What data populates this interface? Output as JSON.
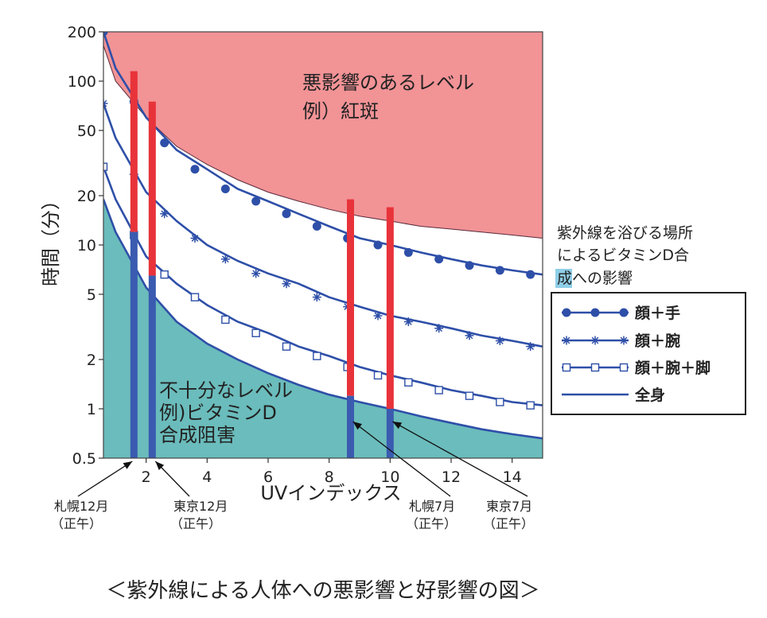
{
  "chart_data": {
    "type": "line",
    "title": "",
    "caption": "＜紫外線による人体への悪影響と好影響の図＞",
    "xlabel": "UVインデックス",
    "ylabel": "時間（分）",
    "y_scale": "log",
    "xlim": [
      0.6,
      15
    ],
    "ylim": [
      0.5,
      200
    ],
    "x_ticks": [
      2,
      4,
      6,
      8,
      10,
      12,
      14
    ],
    "y_ticks": [
      {
        "value": 0.5,
        "label": "0.5"
      },
      {
        "value": 1,
        "label": "1"
      },
      {
        "value": 2,
        "label": "2"
      },
      {
        "value": 5,
        "label": "5"
      },
      {
        "value": 10,
        "label": "10"
      },
      {
        "value": 20,
        "label": "20"
      },
      {
        "value": 50,
        "label": "50"
      },
      {
        "value": 100,
        "label": "100"
      },
      {
        "value": 200,
        "label": "200"
      }
    ],
    "regions": {
      "harmful": {
        "line1": "悪影響のあるレベル",
        "line2": "例）紅斑",
        "color": "#f29396"
      },
      "insufficient": {
        "line1": "不十分なレベル",
        "line2": "例)ビタミンD",
        "line3": "合成阻害",
        "color": "#6bbcbc"
      }
    },
    "erythema_curve": {
      "x": [
        0.6,
        1,
        2,
        3,
        4,
        5,
        6,
        7,
        8,
        9,
        10,
        11,
        12,
        13,
        14,
        15
      ],
      "y": [
        165,
        100,
        60,
        40,
        31,
        25,
        21,
        18.5,
        16.5,
        15,
        14,
        13,
        12.5,
        12,
        11.5,
        11
      ]
    },
    "series": [
      {
        "name": "顔＋手",
        "marker": "circle",
        "x": [
          0.6,
          1.6,
          2.6,
          3.6,
          4.6,
          5.6,
          6.6,
          7.6,
          8.6,
          9.6,
          10.6,
          11.6,
          12.6,
          13.6,
          14.6
        ],
        "y": [
          200,
          75,
          42,
          29,
          22,
          18.5,
          15.5,
          13,
          11,
          10,
          9,
          8.2,
          7.5,
          7,
          6.6
        ],
        "line_x": [
          0.6,
          1,
          2,
          3,
          4,
          5,
          6,
          7,
          8,
          9,
          10,
          11,
          12,
          13,
          14,
          15
        ],
        "line_y": [
          200,
          120,
          60,
          38,
          29,
          22,
          18.5,
          15.5,
          13,
          11,
          10,
          9,
          8.2,
          7.5,
          7,
          6.6
        ]
      },
      {
        "name": "顔＋腕",
        "marker": "star",
        "x": [
          0.6,
          1.6,
          2.6,
          3.6,
          4.6,
          5.6,
          6.6,
          7.6,
          8.6,
          9.6,
          10.6,
          11.6,
          12.6,
          13.6,
          14.6
        ],
        "y": [
          73,
          27,
          15.5,
          11,
          8.2,
          6.7,
          5.8,
          4.8,
          4.2,
          3.7,
          3.4,
          3.1,
          2.8,
          2.6,
          2.4
        ],
        "line_x": [
          0.6,
          1,
          2,
          3,
          4,
          5,
          6,
          7,
          8,
          9,
          10,
          11,
          12,
          13,
          14,
          15
        ],
        "line_y": [
          73,
          45,
          21,
          14,
          10,
          8,
          6.7,
          5.8,
          4.8,
          4.2,
          3.7,
          3.4,
          3.1,
          2.8,
          2.6,
          2.4
        ]
      },
      {
        "name": "顔＋腕＋脚",
        "marker": "square",
        "x": [
          0.6,
          1.6,
          2.6,
          3.6,
          4.6,
          5.6,
          6.6,
          7.6,
          8.6,
          9.6,
          10.6,
          11.6,
          12.6,
          13.6,
          14.6
        ],
        "y": [
          30,
          11.5,
          6.6,
          4.8,
          3.5,
          2.9,
          2.4,
          2.1,
          1.8,
          1.6,
          1.45,
          1.3,
          1.2,
          1.1,
          1.05
        ],
        "line_x": [
          0.6,
          1,
          2,
          3,
          4,
          5,
          6,
          7,
          8,
          9,
          10,
          11,
          12,
          13,
          14,
          15
        ],
        "line_y": [
          30,
          19,
          8.5,
          5.8,
          4.3,
          3.4,
          2.9,
          2.4,
          2.1,
          1.8,
          1.6,
          1.45,
          1.3,
          1.2,
          1.1,
          1.05
        ]
      },
      {
        "name": "全身",
        "marker": "none",
        "line_x": [
          0.6,
          1,
          2,
          3,
          4,
          5,
          6,
          7,
          8,
          9,
          10,
          11,
          12,
          13,
          14,
          15
        ],
        "line_y": [
          19,
          12,
          5.5,
          3.4,
          2.5,
          2,
          1.65,
          1.4,
          1.22,
          1.1,
          1,
          0.9,
          0.82,
          0.75,
          0.7,
          0.66
        ]
      }
    ],
    "locations": [
      {
        "line1": "札幌12月",
        "line2": "（正午）",
        "uv": 1.6,
        "red_top": 115,
        "red_bottom": 12,
        "blue_bottom": 0.5
      },
      {
        "line1": "東京12月",
        "line2": "（正午）",
        "uv": 2.2,
        "red_top": 75,
        "red_bottom": 6.5,
        "blue_bottom": 0.5
      },
      {
        "line1": "札幌7月",
        "line2": "（正午）",
        "uv": 8.7,
        "red_top": 19,
        "red_bottom": 1.2,
        "blue_bottom": 0.5
      },
      {
        "line1": "東京7月",
        "line2": "（正午）",
        "uv": 10,
        "red_top": 17,
        "red_bottom": 1,
        "blue_bottom": 0.5
      }
    ],
    "legend": {
      "title_line1": "紫外線を浴びる場所",
      "title_line2": "によるビタミンD合",
      "title_line3": "成への影響",
      "placement": "right"
    },
    "colors": {
      "series": "#2e4fa8",
      "red_bar": "#e8333a",
      "blue_bar": "#3a5bb0"
    }
  }
}
